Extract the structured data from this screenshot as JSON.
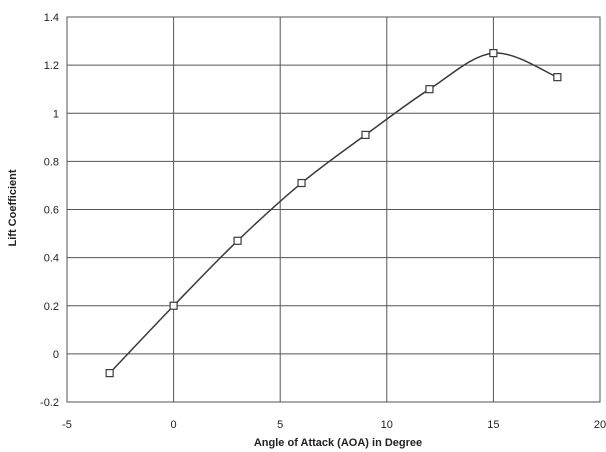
{
  "chart_data": {
    "type": "line",
    "title": "",
    "xlabel": "Angle of Attack (AOA) in Degree",
    "ylabel": "Lift Coefficient",
    "xlim": [
      -5,
      20
    ],
    "ylim": [
      -0.2,
      1.4
    ],
    "x_ticks": [
      "-5",
      "0",
      "5",
      "10",
      "15",
      "20"
    ],
    "y_ticks": [
      "-0.2",
      "0",
      "0.2",
      "0.4",
      "0.6",
      "0.8",
      "1",
      "1.2",
      "1.4"
    ],
    "grid": true,
    "legend": "none",
    "marker": "open-square",
    "line_color": "#3a3a3a",
    "grid_color": "#555555",
    "series": [
      {
        "x": [
          -3,
          0,
          3,
          6,
          9,
          12,
          15,
          18
        ],
        "y": [
          -0.08,
          0.2,
          0.47,
          0.71,
          0.91,
          1.1,
          1.25,
          1.15
        ]
      }
    ]
  }
}
